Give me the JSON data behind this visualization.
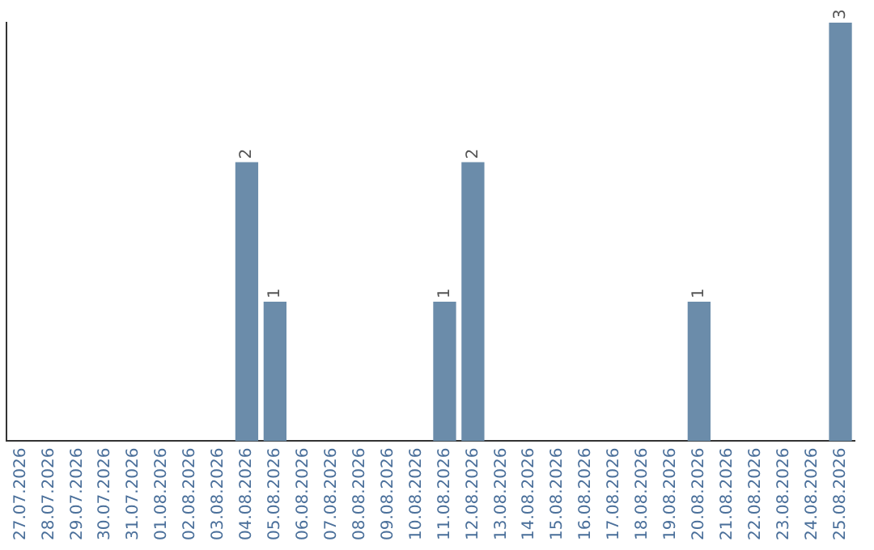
{
  "chart_data": {
    "type": "bar",
    "categories": [
      "27.07.2026",
      "28.07.2026",
      "29.07.2026",
      "30.07.2026",
      "31.07.2026",
      "01.08.2026",
      "02.08.2026",
      "03.08.2026",
      "04.08.2026",
      "05.08.2026",
      "06.08.2026",
      "07.08.2026",
      "08.08.2026",
      "09.08.2026",
      "10.08.2026",
      "11.08.2026",
      "12.08.2026",
      "13.08.2026",
      "14.08.2026",
      "15.08.2026",
      "16.08.2026",
      "17.08.2026",
      "18.08.2026",
      "19.08.2026",
      "20.08.2026",
      "21.08.2026",
      "22.08.2026",
      "23.08.2026",
      "24.08.2026",
      "25.08.2026"
    ],
    "values": [
      0,
      0,
      0,
      0,
      0,
      0,
      0,
      0,
      2,
      1,
      0,
      0,
      0,
      0,
      0,
      1,
      2,
      0,
      0,
      0,
      0,
      0,
      0,
      0,
      1,
      0,
      0,
      0,
      0,
      3
    ],
    "value_labels": [
      null,
      null,
      null,
      null,
      null,
      null,
      null,
      null,
      "2",
      "1",
      null,
      null,
      null,
      null,
      null,
      "1",
      "2",
      null,
      null,
      null,
      null,
      null,
      null,
      null,
      "1",
      null,
      null,
      null,
      null,
      "3"
    ],
    "color": "#6b8caa",
    "grid": false,
    "legend": false
  }
}
